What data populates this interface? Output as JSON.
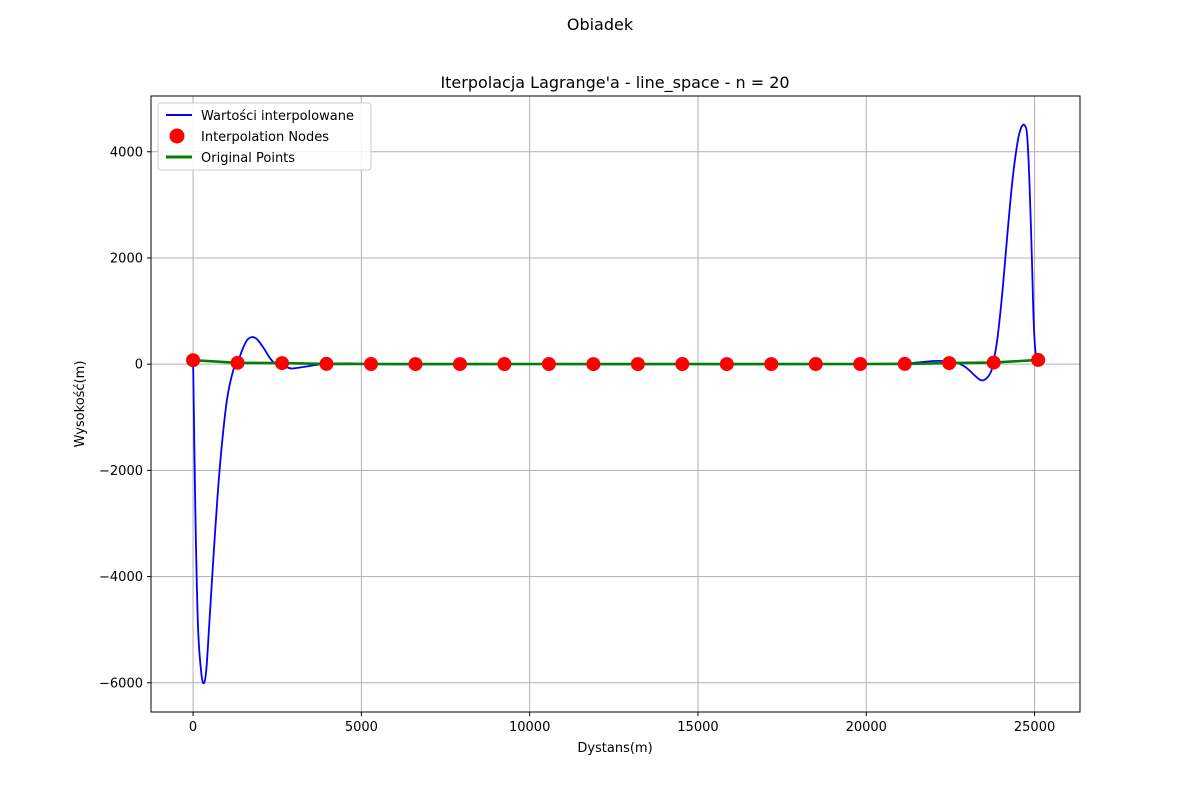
{
  "figure": {
    "suptitle": "Obiadek"
  },
  "chart_data": {
    "type": "line",
    "title": "Iterpolacja Lagrange'a - line_space - n = 20",
    "xlabel": "Dystans(m)",
    "ylabel": "Wysokość(m)",
    "xlim": [
      -1250,
      26350
    ],
    "ylim": [
      -6550,
      5050
    ],
    "xticks": [
      0,
      5000,
      10000,
      15000,
      20000,
      25000
    ],
    "xtick_labels": [
      "0",
      "5000",
      "10000",
      "15000",
      "20000",
      "25000"
    ],
    "yticks": [
      -6000,
      -4000,
      -2000,
      0,
      2000,
      4000
    ],
    "ytick_labels": [
      "−6000",
      "−4000",
      "−2000",
      "0",
      "2000",
      "4000"
    ],
    "grid": true,
    "legend_position": "upper-left",
    "colors": {
      "interpolated": "#0000ff",
      "nodes": "#ff0000",
      "original": "#008000",
      "grid": "#b0b0b0"
    },
    "series": [
      {
        "name": "Wartości interpolowane",
        "kind": "line",
        "x": [
          0,
          30,
          80,
          150,
          250,
          330,
          400,
          500,
          650,
          800,
          1000,
          1200,
          1320,
          1450,
          1600,
          1750,
          1900,
          2100,
          2300,
          2500,
          2700,
          2900,
          3100,
          3300,
          3500,
          3700,
          3900,
          4100,
          4500,
          5000,
          6000,
          8000,
          10000,
          12000,
          14000,
          16000,
          18000,
          20000,
          21000,
          21500,
          22000,
          22300,
          22600,
          22800,
          23000,
          23200,
          23400,
          23550,
          23700,
          23780,
          23900,
          24050,
          24200,
          24350,
          24500,
          24600,
          24700,
          24780,
          24850,
          24920,
          24980,
          25050,
          25110
        ],
        "y": [
          80,
          -1200,
          -3200,
          -5000,
          -5850,
          -6000,
          -5700,
          -4700,
          -3200,
          -1900,
          -700,
          -100,
          20,
          250,
          450,
          510,
          470,
          300,
          100,
          -20,
          -40,
          -80,
          -70,
          -50,
          -30,
          -10,
          0,
          10,
          15,
          10,
          0,
          0,
          0,
          0,
          0,
          0,
          0,
          0,
          10,
          30,
          60,
          60,
          40,
          0,
          -80,
          -200,
          -300,
          -280,
          -150,
          40,
          500,
          1400,
          2500,
          3500,
          4200,
          4450,
          4500,
          4300,
          3400,
          2000,
          700,
          100,
          80
        ]
      },
      {
        "name": "Interpolation Nodes",
        "kind": "scatter",
        "x": [
          0,
          1321,
          2643,
          3964,
          5286,
          6607,
          7929,
          9250,
          10571,
          11893,
          13214,
          14536,
          15857,
          17179,
          18500,
          19821,
          21143,
          22464,
          23786,
          25107
        ],
        "y": [
          75,
          25,
          20,
          5,
          3,
          2,
          2,
          3,
          3,
          2,
          2,
          3,
          2,
          2,
          3,
          3,
          5,
          20,
          30,
          80
        ]
      },
      {
        "name": "Original Points",
        "kind": "line",
        "x": [
          0,
          1321,
          2643,
          3964,
          5286,
          6607,
          7929,
          9250,
          10571,
          11893,
          13214,
          14536,
          15857,
          17179,
          18500,
          19821,
          21143,
          22464,
          23786,
          25107
        ],
        "y": [
          75,
          25,
          20,
          5,
          3,
          2,
          2,
          3,
          3,
          2,
          2,
          3,
          2,
          2,
          3,
          3,
          5,
          20,
          30,
          80
        ]
      }
    ]
  }
}
